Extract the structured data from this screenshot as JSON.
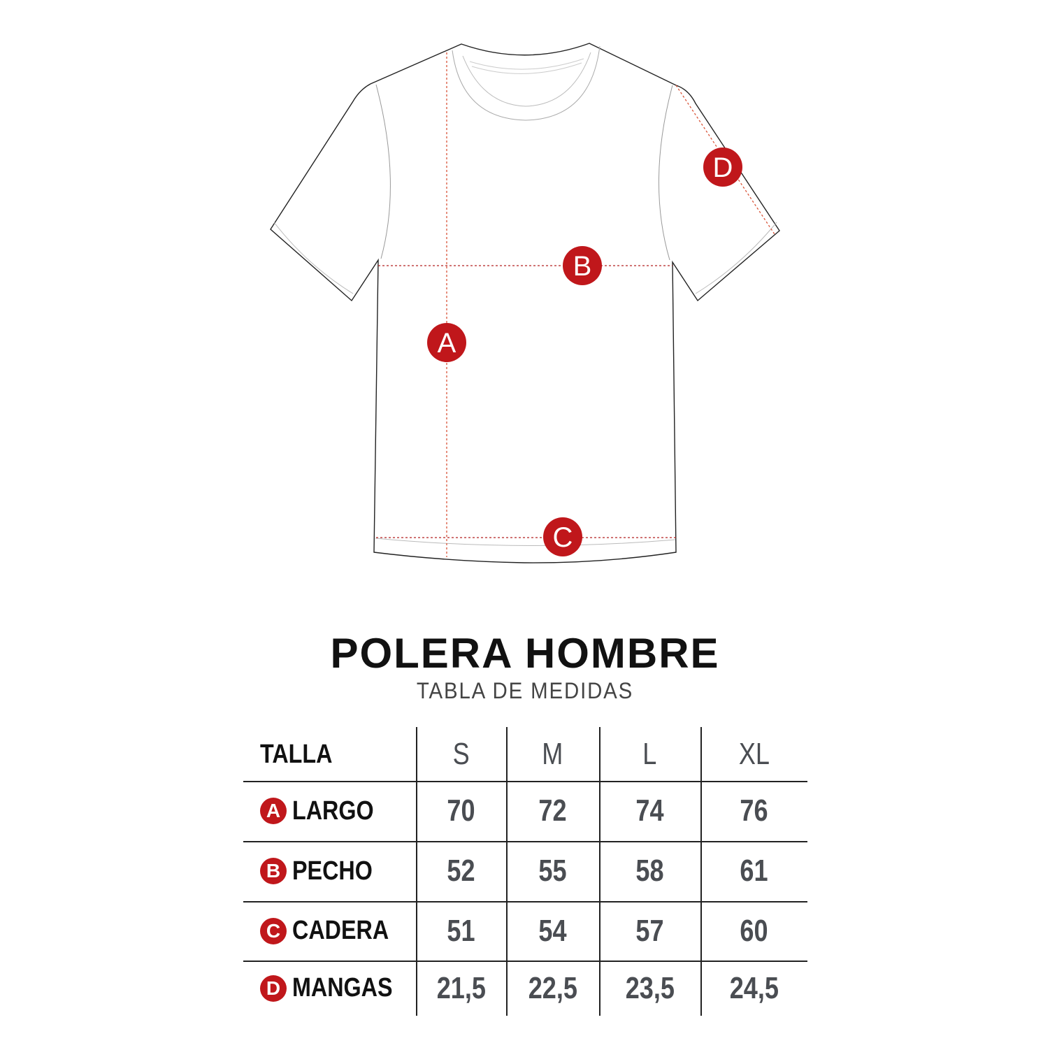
{
  "diagram": {
    "markers": [
      "A",
      "B",
      "C",
      "D"
    ],
    "accent_color": "#c0171b",
    "guide_color": "#e0603a"
  },
  "title": "POLERA HOMBRE",
  "subtitle": "TABLA DE MEDIDAS",
  "table": {
    "header_label": "TALLA",
    "sizes": [
      "S",
      "M",
      "L",
      "XL"
    ],
    "rows": [
      {
        "marker": "A",
        "label": "LARGO",
        "values": [
          "70",
          "72",
          "74",
          "76"
        ]
      },
      {
        "marker": "B",
        "label": "PECHO",
        "values": [
          "52",
          "55",
          "58",
          "61"
        ]
      },
      {
        "marker": "C",
        "label": "CADERA",
        "values": [
          "51",
          "54",
          "57",
          "60"
        ]
      },
      {
        "marker": "D",
        "label": "MANGAS",
        "values": [
          "21,5",
          "22,5",
          "23,5",
          "24,5"
        ]
      }
    ]
  }
}
